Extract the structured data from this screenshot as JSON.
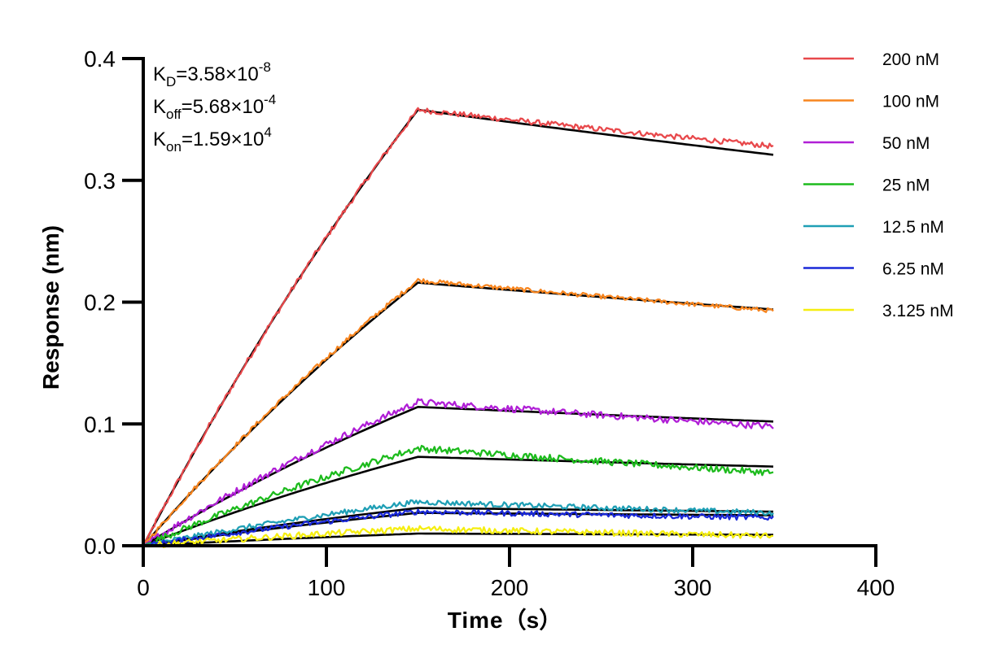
{
  "chart_data": {
    "type": "line",
    "title": "",
    "xlabel": "Time",
    "xlabel_unit": "s",
    "ylabel": "Response (nm)",
    "xlim": [
      0,
      400
    ],
    "ylim": [
      0,
      0.4
    ],
    "x_ticks": [
      "0",
      "100",
      "200",
      "300",
      "400"
    ],
    "y_ticks": [
      "0.0",
      "0.1",
      "0.2",
      "0.3",
      "0.4"
    ],
    "grid": false,
    "legend_position": "top-right",
    "association_end_time": 150,
    "end_time": 344,
    "annotations": [
      {
        "name": "K",
        "sub": "D",
        "value": "=3.58×10",
        "exp": "-8"
      },
      {
        "name": "K",
        "sub": "off",
        "value": "=5.68×10",
        "exp": "-4"
      },
      {
        "name": "K",
        "sub": "on",
        "value": "=1.59×10",
        "exp": "4"
      }
    ],
    "fit_color": "#000000",
    "series": [
      {
        "name": "200 nM",
        "color": "#e8484b",
        "peak": 0.358,
        "end": 0.328,
        "fit_peak": 0.358,
        "fit_end": 0.321,
        "noise": 0.0022
      },
      {
        "name": "100 nM",
        "color": "#f7851f",
        "peak": 0.218,
        "end": 0.193,
        "fit_peak": 0.216,
        "fit_end": 0.194,
        "noise": 0.0018
      },
      {
        "name": "50 nM",
        "color": "#b01fd6",
        "peak": 0.118,
        "end": 0.098,
        "fit_peak": 0.114,
        "fit_end": 0.102,
        "noise": 0.0028
      },
      {
        "name": "25 nM",
        "color": "#1dbb1d",
        "peak": 0.08,
        "end": 0.06,
        "fit_peak": 0.073,
        "fit_end": 0.065,
        "noise": 0.0028
      },
      {
        "name": "12.5 nM",
        "color": "#1f9fb5",
        "peak": 0.036,
        "end": 0.027,
        "fit_peak": 0.031,
        "fit_end": 0.028,
        "noise": 0.0022
      },
      {
        "name": "6.25 nM",
        "color": "#1a28d8",
        "peak": 0.028,
        "end": 0.023,
        "fit_peak": 0.027,
        "fit_end": 0.025,
        "noise": 0.0022
      },
      {
        "name": "3.125 nM",
        "color": "#f5ee10",
        "peak": 0.014,
        "end": 0.008,
        "fit_peak": 0.01,
        "fit_end": 0.009,
        "noise": 0.0025
      }
    ]
  }
}
